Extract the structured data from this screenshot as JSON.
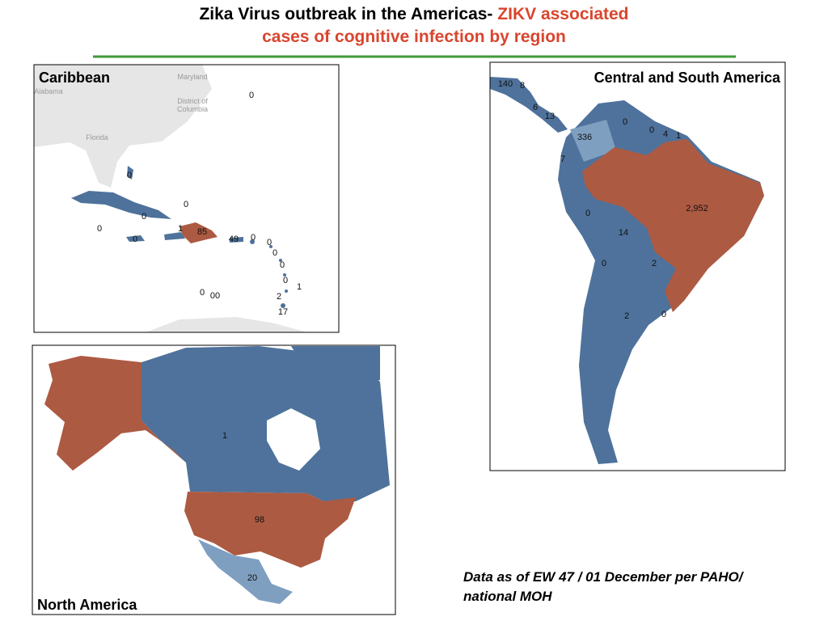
{
  "title": {
    "line1": "Zika Virus outbreak in the Americas-",
    "line1_highlight": "ZIKV associated",
    "line2": "cases of cognitive infection by region"
  },
  "caribbean": {
    "title": "Caribbean",
    "place_labels": [
      "Maryland",
      "District of",
      "Columbia",
      "Alabama",
      "Florida"
    ],
    "case_labels": [
      "0",
      "0",
      "0",
      "0",
      "0",
      "1",
      "85",
      "49",
      "0",
      "0",
      "0",
      "0",
      "0",
      "0",
      "1",
      "0",
      "00",
      "2",
      "17"
    ]
  },
  "central_south_america": {
    "title": "Central and South America",
    "case_labels": [
      "140",
      "8",
      "6",
      "13",
      "0",
      "0",
      "4",
      "1",
      "336",
      "7",
      "2,952",
      "0",
      "14",
      "0",
      "2",
      "2",
      "0"
    ]
  },
  "north_america": {
    "title": "North America",
    "case_labels": [
      "1",
      "98",
      "20"
    ]
  },
  "footer": {
    "lines": [
      "Data as of EW 47 / 01 December per PAHO/",
      "national MOH"
    ]
  }
}
